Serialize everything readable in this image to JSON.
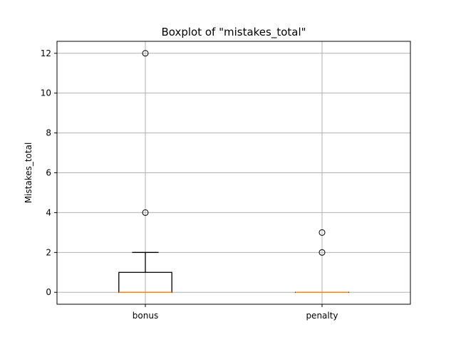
{
  "chart_data": {
    "type": "box",
    "title": "Boxplot of \"mistakes_total\"",
    "xlabel": "",
    "ylabel": "Mistakes_total",
    "ylim": [
      -0.6,
      12.6
    ],
    "yticks": [
      0,
      2,
      4,
      6,
      8,
      10,
      12
    ],
    "grid": true,
    "categories": [
      "bonus",
      "penalty"
    ],
    "boxes": [
      {
        "category": "bonus",
        "whisker_low": 0,
        "q1": 0,
        "median": 0,
        "q3": 1,
        "whisker_high": 2,
        "outliers": [
          4,
          12
        ]
      },
      {
        "category": "penalty",
        "whisker_low": 0,
        "q1": 0,
        "median": 0,
        "q3": 0,
        "whisker_high": 0,
        "outliers": [
          2,
          3
        ]
      }
    ],
    "colors": {
      "box": "#000000",
      "median": "#ff7f0e",
      "grid": "#b0b0b0"
    }
  }
}
